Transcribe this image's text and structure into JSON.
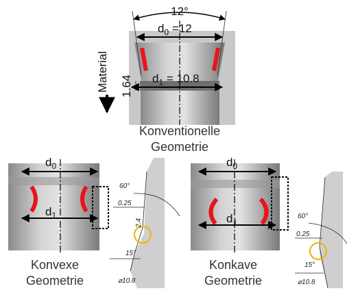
{
  "top": {
    "angle": "12°",
    "d0": {
      "base": "d",
      "sub": "0",
      "value": " =12"
    },
    "direction": "Material",
    "height": "1.64",
    "d1": {
      "base": "d",
      "sub": "1",
      "value": " = 10.8"
    },
    "caption": [
      "Konventionelle",
      "Geometrie"
    ]
  },
  "convex": {
    "d0": {
      "base": "d",
      "sub": "0"
    },
    "d1": {
      "base": "d",
      "sub": "1"
    },
    "detail": {
      "angle_top": "60°",
      "offset": "0.25",
      "height": "2.4",
      "angle_bottom": "15°",
      "diameter": "⌀10.8"
    },
    "caption": [
      "Konvexe",
      "Geometrie"
    ]
  },
  "concave": {
    "d0": {
      "base": "d",
      "sub": "0"
    },
    "d1": {
      "base": "d",
      "sub": "1"
    },
    "detail": {
      "angle_top": "60°",
      "offset": "0.25",
      "angle_bottom": "15°",
      "diameter": "⌀10.8"
    },
    "caption": [
      "Konkave",
      "Geometrie"
    ]
  }
}
